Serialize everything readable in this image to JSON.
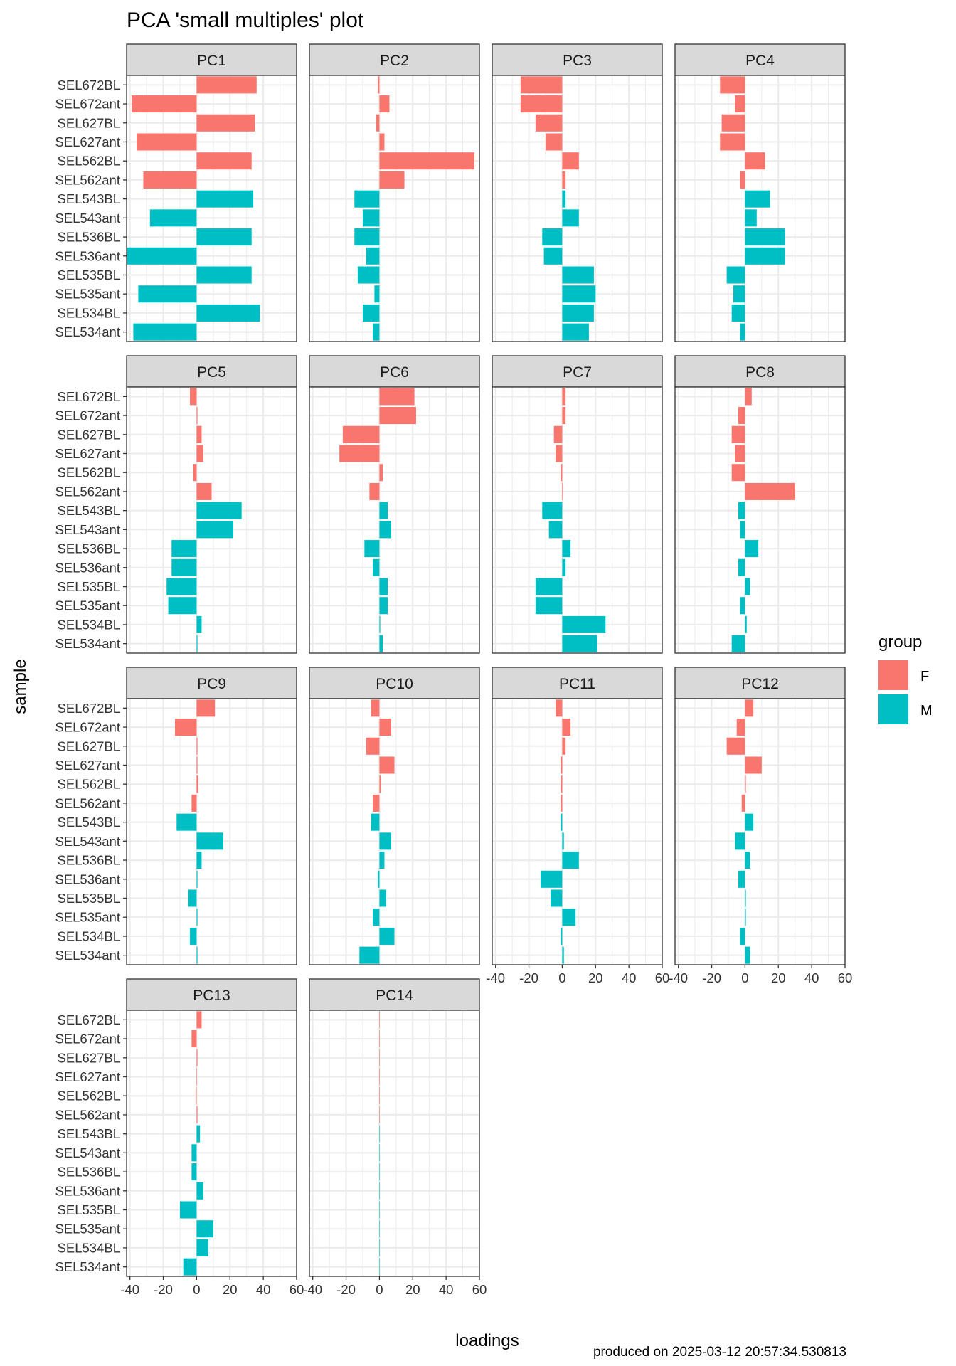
{
  "chart_data": {
    "type": "bar",
    "orientation": "horizontal",
    "title": "PCA 'small multiples' plot",
    "xlabel": "loadings",
    "ylabel": "sample",
    "caption": "produced on 2025-03-12 20:57:34.530813",
    "xlim": [
      -42,
      60
    ],
    "xticks": [
      -40,
      -20,
      0,
      20,
      40,
      60
    ],
    "grid": true,
    "legend": {
      "title": "group",
      "position": "right",
      "items": [
        {
          "label": "F",
          "color": "#F8766D"
        },
        {
          "label": "M",
          "color": "#00BFC4"
        }
      ]
    },
    "categories": [
      "SEL672BL",
      "SEL672ant",
      "SEL627BL",
      "SEL627ant",
      "SEL562BL",
      "SEL562ant",
      "SEL543BL",
      "SEL543ant",
      "SEL536BL",
      "SEL536ant",
      "SEL535BL",
      "SEL535ant",
      "SEL534BL",
      "SEL534ant"
    ],
    "groups": [
      "F",
      "F",
      "F",
      "F",
      "F",
      "F",
      "M",
      "M",
      "M",
      "M",
      "M",
      "M",
      "M",
      "M"
    ],
    "panels": [
      {
        "name": "PC1",
        "values": [
          36,
          -39,
          35,
          -36,
          33,
          -32,
          34,
          -28,
          33,
          -42,
          33,
          -35,
          38,
          -38
        ]
      },
      {
        "name": "PC2",
        "values": [
          -1,
          6,
          -2,
          3,
          57,
          15,
          -15,
          -10,
          -15,
          -8,
          -13,
          -3,
          -10,
          -4
        ]
      },
      {
        "name": "PC3",
        "values": [
          -25,
          -25,
          -16,
          -10,
          10,
          2,
          2,
          10,
          -12,
          -11,
          19,
          20,
          19,
          16
        ]
      },
      {
        "name": "PC4",
        "values": [
          -15,
          -6,
          -14,
          -15,
          12,
          -3,
          15,
          7,
          24,
          24,
          -11,
          -7,
          -8,
          -3
        ]
      },
      {
        "name": "PC5",
        "values": [
          -4,
          0.5,
          3,
          4,
          -2,
          9,
          27,
          22,
          -15,
          -15,
          -18,
          -17,
          3,
          0.5
        ]
      },
      {
        "name": "PC6",
        "values": [
          21,
          22,
          -22,
          -24,
          2,
          -6,
          5,
          7,
          -9,
          -4,
          5,
          5,
          0.5,
          2
        ]
      },
      {
        "name": "PC7",
        "values": [
          2,
          2,
          -5,
          -4,
          -1,
          0.5,
          -12,
          -8,
          5,
          2,
          -16,
          -16,
          26,
          21
        ]
      },
      {
        "name": "PC8",
        "values": [
          4,
          -4,
          -8,
          -6,
          -8,
          30,
          -4,
          -3,
          8,
          -4,
          3,
          -3,
          1,
          -8
        ]
      },
      {
        "name": "PC9",
        "values": [
          11,
          -13,
          0.5,
          0.5,
          1,
          -3,
          -12,
          16,
          3,
          0.5,
          -5,
          0.5,
          -4,
          0.5
        ]
      },
      {
        "name": "PC10",
        "values": [
          -5,
          7,
          -8,
          9,
          1,
          -4,
          -5,
          7,
          3,
          -1,
          4,
          -4,
          9,
          -12
        ]
      },
      {
        "name": "PC11",
        "values": [
          -4,
          5,
          2,
          -1,
          -1,
          -1,
          -1,
          1,
          10,
          -13,
          -7,
          8,
          -1,
          1
        ]
      },
      {
        "name": "PC12",
        "values": [
          5,
          -5,
          -11,
          10,
          0.5,
          -2,
          5,
          -6,
          3,
          -4,
          0.5,
          0.5,
          -3,
          3
        ]
      },
      {
        "name": "PC13",
        "values": [
          3,
          -3,
          0.5,
          0,
          -0.5,
          0.5,
          2,
          -3,
          -3,
          4,
          -10,
          10,
          7,
          -8
        ]
      },
      {
        "name": "PC14",
        "values": [
          0,
          0,
          0,
          0,
          0,
          0,
          0,
          0,
          0,
          0,
          0,
          0,
          0,
          0
        ]
      }
    ]
  }
}
